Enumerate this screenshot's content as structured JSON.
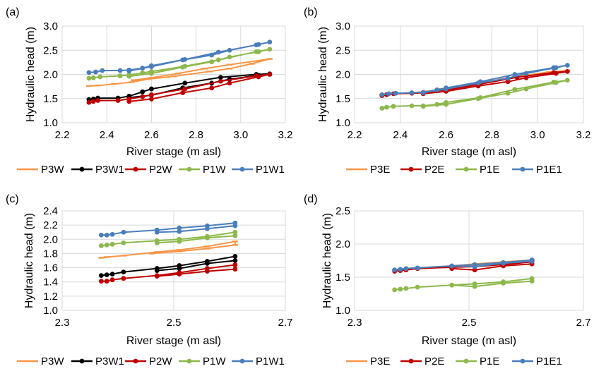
{
  "colors": {
    "P3W": "#F79646",
    "P3W1": "#000000",
    "P2W": "#C00000",
    "P1W": "#8DB84B",
    "P1W1": "#4A7EBB",
    "P3E": "#F79646",
    "P2E": "#C00000",
    "P1E": "#8DB84B",
    "P1E1": "#4A7EBB",
    "grid": "#D9D9D9"
  },
  "chart_data": [
    {
      "panel": "(a)",
      "type": "line",
      "xlabel": "River stage (m asl)",
      "ylabel": "Hydraulic head (m)",
      "xlim": [
        2.2,
        3.2
      ],
      "ylim": [
        1.0,
        3.0
      ],
      "xticks": [
        "2.2",
        "2.4",
        "2.6",
        "2.8",
        "3.0",
        "3.2"
      ],
      "yticks": [
        "1.0",
        "1.5",
        "2.0",
        "2.5",
        "3.0"
      ],
      "grid": true,
      "legend_position": "bottom",
      "series": [
        {
          "name": "P3W",
          "color_key": "P3W",
          "marker": "dash",
          "x": [
            2.32,
            2.36,
            2.43,
            2.51,
            2.58,
            2.7,
            2.86,
            2.95,
            3.05,
            3.13,
            2.95,
            2.84,
            2.72,
            2.6,
            2.52
          ],
          "y": [
            1.76,
            1.77,
            1.8,
            1.84,
            1.9,
            1.96,
            2.06,
            2.12,
            2.22,
            2.32,
            2.2,
            2.12,
            2.02,
            1.93,
            1.88
          ]
        },
        {
          "name": "P3W1",
          "color_key": "P3W1",
          "marker": "circle",
          "x": [
            2.32,
            2.34,
            2.36,
            2.45,
            2.5,
            2.56,
            2.6,
            2.75,
            2.91,
            3.07,
            3.13,
            3.08,
            2.95,
            2.87,
            2.74,
            2.6,
            2.5
          ],
          "y": [
            1.48,
            1.49,
            1.51,
            1.51,
            1.55,
            1.64,
            1.7,
            1.82,
            1.94,
            2.0,
            2.01,
            1.98,
            1.9,
            1.82,
            1.72,
            1.57,
            1.52
          ]
        },
        {
          "name": "P2W",
          "color_key": "P2W",
          "marker": "circle",
          "x": [
            2.32,
            2.34,
            2.36,
            2.45,
            2.5,
            2.56,
            2.6,
            2.75,
            2.91,
            3.07,
            3.13,
            3.08,
            2.95,
            2.87,
            2.74,
            2.6,
            2.5
          ],
          "y": [
            1.42,
            1.44,
            1.46,
            1.46,
            1.49,
            1.54,
            1.58,
            1.7,
            1.86,
            1.97,
            2.0,
            1.95,
            1.82,
            1.72,
            1.62,
            1.49,
            1.44
          ]
        },
        {
          "name": "P1W",
          "color_key": "P1W",
          "marker": "circle",
          "x": [
            2.32,
            2.34,
            2.37,
            2.46,
            2.5,
            2.56,
            2.6,
            2.75,
            2.9,
            3.07,
            3.13,
            3.08,
            2.95,
            2.87,
            2.74,
            2.6,
            2.5
          ],
          "y": [
            1.92,
            1.93,
            1.95,
            1.97,
            1.99,
            2.03,
            2.06,
            2.17,
            2.3,
            2.47,
            2.52,
            2.47,
            2.36,
            2.26,
            2.15,
            2.02,
            1.96
          ]
        },
        {
          "name": "P1W1",
          "color_key": "P1W1",
          "marker": "circle",
          "x": [
            2.32,
            2.35,
            2.38,
            2.46,
            2.5,
            2.56,
            2.6,
            2.75,
            2.9,
            3.07,
            3.13,
            3.08,
            2.95,
            2.87,
            2.74,
            2.6,
            2.5
          ],
          "y": [
            2.04,
            2.05,
            2.08,
            2.08,
            2.09,
            2.13,
            2.18,
            2.31,
            2.46,
            2.61,
            2.67,
            2.62,
            2.5,
            2.4,
            2.3,
            2.16,
            2.07
          ]
        }
      ]
    },
    {
      "panel": "(b)",
      "type": "line",
      "xlabel": "River stage (m asl)",
      "ylabel": "Hydraulic head (m)",
      "xlim": [
        2.2,
        3.2
      ],
      "ylim": [
        1.0,
        3.0
      ],
      "xticks": [
        "2.2",
        "2.4",
        "2.6",
        "2.8",
        "3.0",
        "3.2"
      ],
      "yticks": [
        "1.0",
        "1.5",
        "2.0",
        "2.5",
        "3.0"
      ],
      "grid": true,
      "legend_position": "bottom",
      "series": [
        {
          "name": "P3E",
          "color_key": "P3E",
          "marker": "dash",
          "x": [
            2.32,
            2.36,
            2.45,
            2.52,
            2.58,
            2.75,
            2.9,
            3.05,
            3.13,
            2.95,
            2.84,
            2.7,
            2.56
          ],
          "y": [
            1.58,
            1.6,
            1.62,
            1.65,
            1.7,
            1.82,
            1.95,
            2.05,
            2.08,
            1.98,
            1.9,
            1.78,
            1.67
          ]
        },
        {
          "name": "P2E",
          "color_key": "P2E",
          "marker": "circle",
          "x": [
            2.32,
            2.34,
            2.37,
            2.45,
            2.5,
            2.56,
            2.6,
            2.75,
            2.91,
            3.07,
            3.13,
            3.08,
            2.95,
            2.87,
            2.74,
            2.6,
            2.5
          ],
          "y": [
            1.56,
            1.58,
            1.6,
            1.61,
            1.62,
            1.66,
            1.68,
            1.8,
            1.94,
            2.04,
            2.06,
            2.02,
            1.93,
            1.85,
            1.76,
            1.65,
            1.6
          ]
        },
        {
          "name": "P1E",
          "color_key": "P1E",
          "marker": "circle",
          "x": [
            2.32,
            2.34,
            2.37,
            2.45,
            2.5,
            2.56,
            2.6,
            2.75,
            2.9,
            3.07,
            3.13,
            3.08,
            2.95,
            2.87,
            2.74,
            2.6,
            2.5
          ],
          "y": [
            1.3,
            1.32,
            1.34,
            1.35,
            1.35,
            1.38,
            1.42,
            1.52,
            1.69,
            1.84,
            1.88,
            1.83,
            1.7,
            1.61,
            1.5,
            1.38,
            1.34
          ]
        },
        {
          "name": "P1E1",
          "color_key": "P1E1",
          "marker": "circle",
          "x": [
            2.32,
            2.35,
            2.38,
            2.45,
            2.5,
            2.56,
            2.6,
            2.75,
            2.9,
            3.07,
            3.13,
            3.08,
            2.95,
            2.87,
            2.74,
            2.6,
            2.5
          ],
          "y": [
            1.58,
            1.6,
            1.61,
            1.62,
            1.63,
            1.68,
            1.72,
            1.85,
            2.0,
            2.14,
            2.19,
            2.14,
            2.02,
            1.92,
            1.82,
            1.7,
            1.62
          ]
        }
      ]
    },
    {
      "panel": "(c)",
      "type": "line",
      "xlabel": "River stage (m asl)",
      "ylabel": "Hydraulic head (m)",
      "xlim": [
        2.3,
        2.7
      ],
      "ylim": [
        1.0,
        2.4
      ],
      "xticks": [
        "2.3",
        "2.5",
        "2.7"
      ],
      "yticks": [
        "1.0",
        "1.2",
        "1.4",
        "1.6",
        "1.8",
        "2.0",
        "2.2",
        "2.4"
      ],
      "grid": true,
      "legend_position": "bottom",
      "series": [
        {
          "name": "P3W",
          "color_key": "P3W",
          "marker": "dash",
          "x": [
            2.37,
            2.38,
            2.41,
            2.47,
            2.51,
            2.56,
            2.61,
            2.61,
            2.56,
            2.51,
            2.46
          ],
          "y": [
            1.74,
            1.75,
            1.77,
            1.82,
            1.85,
            1.9,
            1.97,
            1.92,
            1.87,
            1.83,
            1.8
          ]
        },
        {
          "name": "P3W1",
          "color_key": "P3W1",
          "marker": "circle",
          "x": [
            2.37,
            2.38,
            2.39,
            2.41,
            2.47,
            2.51,
            2.56,
            2.61,
            2.61,
            2.56,
            2.51,
            2.47
          ],
          "y": [
            1.49,
            1.5,
            1.51,
            1.54,
            1.59,
            1.63,
            1.69,
            1.76,
            1.7,
            1.66,
            1.59,
            1.56
          ]
        },
        {
          "name": "P2W",
          "color_key": "P2W",
          "marker": "circle",
          "x": [
            2.37,
            2.38,
            2.39,
            2.41,
            2.47,
            2.51,
            2.56,
            2.61,
            2.61,
            2.56,
            2.51,
            2.47
          ],
          "y": [
            1.41,
            1.41,
            1.43,
            1.45,
            1.49,
            1.53,
            1.59,
            1.64,
            1.58,
            1.55,
            1.51,
            1.48
          ]
        },
        {
          "name": "P1W",
          "color_key": "P1W",
          "marker": "circle",
          "x": [
            2.37,
            2.38,
            2.39,
            2.41,
            2.47,
            2.51,
            2.56,
            2.61,
            2.61,
            2.56,
            2.51,
            2.47
          ],
          "y": [
            1.91,
            1.92,
            1.93,
            1.95,
            1.98,
            2.0,
            2.04,
            2.1,
            2.05,
            2.02,
            1.97,
            1.95
          ]
        },
        {
          "name": "P1W1",
          "color_key": "P1W1",
          "marker": "circle",
          "x": [
            2.37,
            2.38,
            2.39,
            2.41,
            2.47,
            2.51,
            2.56,
            2.61,
            2.61,
            2.56,
            2.51,
            2.47
          ],
          "y": [
            2.06,
            2.06,
            2.07,
            2.1,
            2.13,
            2.16,
            2.19,
            2.23,
            2.19,
            2.15,
            2.11,
            2.1
          ]
        }
      ]
    },
    {
      "panel": "(d)",
      "type": "line",
      "xlabel": "River stage (m asl)",
      "ylabel": "Hydraulic head (m)",
      "xlim": [
        2.3,
        2.7
      ],
      "ylim": [
        1.0,
        2.5
      ],
      "xticks": [
        "2.3",
        "2.5",
        "2.7"
      ],
      "yticks": [
        "1.0",
        "1.5",
        "2.0",
        "2.5"
      ],
      "grid": true,
      "legend_position": "bottom",
      "series": [
        {
          "name": "P3E",
          "color_key": "P3E",
          "marker": "dash",
          "x": [
            2.37,
            2.38,
            2.41,
            2.47,
            2.51,
            2.56,
            2.61,
            2.61,
            2.56,
            2.51,
            2.47
          ],
          "y": [
            1.61,
            1.62,
            1.64,
            1.67,
            1.7,
            1.73,
            1.76,
            1.74,
            1.71,
            1.68,
            1.66
          ]
        },
        {
          "name": "P2E",
          "color_key": "P2E",
          "marker": "circle",
          "x": [
            2.37,
            2.38,
            2.39,
            2.41,
            2.47,
            2.51,
            2.56,
            2.61,
            2.61,
            2.56,
            2.51,
            2.47
          ],
          "y": [
            1.59,
            1.6,
            1.61,
            1.63,
            1.65,
            1.66,
            1.69,
            1.73,
            1.7,
            1.67,
            1.61,
            1.63
          ]
        },
        {
          "name": "P1E",
          "color_key": "P1E",
          "marker": "circle",
          "x": [
            2.37,
            2.38,
            2.39,
            2.41,
            2.47,
            2.51,
            2.56,
            2.61,
            2.61,
            2.56,
            2.51,
            2.47
          ],
          "y": [
            1.31,
            1.32,
            1.33,
            1.35,
            1.38,
            1.4,
            1.43,
            1.48,
            1.44,
            1.41,
            1.36,
            1.38
          ]
        },
        {
          "name": "P1E1",
          "color_key": "P1E1",
          "marker": "circle",
          "x": [
            2.37,
            2.38,
            2.39,
            2.41,
            2.47,
            2.51,
            2.56,
            2.61,
            2.61,
            2.56,
            2.51,
            2.47
          ],
          "y": [
            1.61,
            1.62,
            1.63,
            1.64,
            1.67,
            1.69,
            1.72,
            1.76,
            1.74,
            1.71,
            1.66,
            1.67
          ]
        }
      ]
    }
  ]
}
